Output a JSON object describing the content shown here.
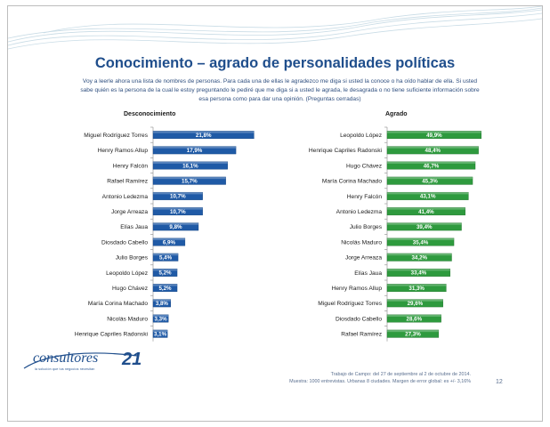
{
  "slide": {
    "title": "Conocimiento – agrado de personalidades políticas",
    "intro": "Voy a leerle ahora una lista de nombres de personas. Para cada una de ellas le agradezco me diga si usted la conoce o ha oído hablar de ella. Si usted sabe quién es la persona de la cual le estoy preguntando le pediré que me diga si a usted le agrada, le desagrada o no tiene suficiente información sobre esa persona como para dar una opinión. (Preguntas cerradas)",
    "footer_line1": "Trabajo de Campo: del 27 de septiembre al 2 de octubre de 2014.",
    "footer_line2": "Muestra: 1000 entrevistas. Urbanas 8 ciudades. Margen de error global: es +/-  3,16%",
    "page_number": "12"
  },
  "logo": {
    "text": "consultores",
    "number": "21",
    "subtext": "la solución que tus negocios necesitan"
  },
  "colors": {
    "title": "#1f4e8c",
    "left_bar": "#1f5aa6",
    "right_bar": "#2e9a3e",
    "wave": "#c9dce6"
  },
  "chart_data": [
    {
      "type": "bar",
      "orientation": "horizontal",
      "title": "Desconocimiento",
      "categories": [
        "Miguel Rodríguez Torres",
        "Henry Ramos Allup",
        "Henry Falcón",
        "Rafael Ramírez",
        "Antonio Ledezma",
        "Jorge Arreaza",
        "Elías Jaua",
        "Diosdado Cabello",
        "Julio Borges",
        "Leopoldo López",
        "Hugo Chávez",
        "María Corina Machado",
        "Nicolás Maduro",
        "Henrique Capriles Radonski"
      ],
      "values": [
        21.8,
        17.9,
        16.1,
        15.7,
        10.7,
        10.7,
        9.8,
        6.9,
        5.4,
        5.2,
        5.2,
        3.8,
        3.3,
        3.1
      ],
      "labels": [
        "21,8%",
        "17,9%",
        "16,1%",
        "15,7%",
        "10,7%",
        "10,7%",
        "9,8%",
        "6,9%",
        "5,4%",
        "5,2%",
        "5,2%",
        "3,8%",
        "3,3%",
        "3,1%"
      ],
      "color": "#1f5aa6"
    },
    {
      "type": "bar",
      "orientation": "horizontal",
      "title": "Agrado",
      "categories": [
        "Leopoldo López",
        "Henrique Capriles Radonski",
        "Hugo Chávez",
        "María Corina Machado",
        "Henry Falcón",
        "Antonio Ledezma",
        "Julio Borges",
        "Nicolás Maduro",
        "Jorge Arreaza",
        "Elías Jaua",
        "Henry Ramos Allup",
        "Miguel Rodríguez Torres",
        "Diosdado Cabello",
        "Rafael Ramírez"
      ],
      "values": [
        49.9,
        48.4,
        46.7,
        45.3,
        43.1,
        41.4,
        39.4,
        35.4,
        34.2,
        33.4,
        31.3,
        29.6,
        28.6,
        27.3
      ],
      "labels": [
        "49,9%",
        "48,4%",
        "46,7%",
        "45,3%",
        "43,1%",
        "41,4%",
        "39,4%",
        "35,4%",
        "34,2%",
        "33,4%",
        "31,3%",
        "29,6%",
        "28,6%",
        "27,3%"
      ],
      "color": "#2e9a3e"
    }
  ]
}
